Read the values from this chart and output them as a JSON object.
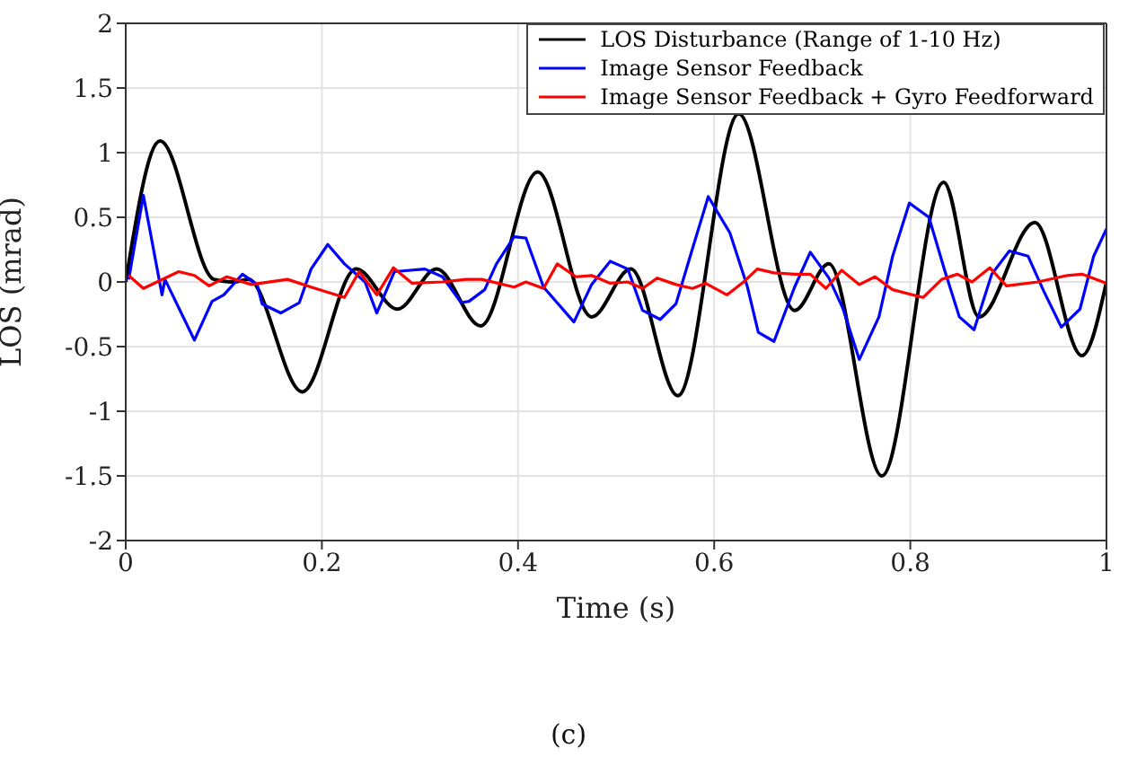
{
  "chart_data": {
    "type": "line",
    "xlabel": "Time (s)",
    "ylabel": "LOS (mrad)",
    "annotations": [
      "(c)"
    ],
    "xlim": [
      0,
      1
    ],
    "xticks": [
      0,
      0.2,
      0.4,
      0.6,
      0.8,
      1
    ],
    "ylim": [
      -2,
      2
    ],
    "yticks": [
      -2,
      -1.5,
      -1,
      -0.5,
      0,
      0.5,
      1,
      1.5,
      2
    ],
    "grid": true,
    "legend": "top right",
    "series": [
      {
        "name": "LOS Disturbance (Range of 1-10 Hz)",
        "color": "#000000",
        "x": [
          0,
          0.035,
          0.09,
          0.11,
          0.125,
          0.18,
          0.235,
          0.277,
          0.317,
          0.362,
          0.42,
          0.475,
          0.515,
          0.563,
          0.625,
          0.682,
          0.717,
          0.771,
          0.834,
          0.87,
          0.927,
          0.975,
          1
        ],
        "values": [
          0,
          1.09,
          0.02,
          0,
          0.02,
          -0.85,
          0.1,
          -0.21,
          0.1,
          -0.34,
          0.85,
          -0.27,
          0.1,
          -0.88,
          1.3,
          -0.22,
          0.14,
          -1.5,
          0.77,
          -0.27,
          0.46,
          -0.57,
          0
        ]
      },
      {
        "name": "Image Sensor Feedback",
        "color": "#0000ff",
        "x": [
          0.003,
          0.018,
          0.037,
          0.04,
          0.07,
          0.088,
          0.1,
          0.119,
          0.134,
          0.139,
          0.158,
          0.177,
          0.189,
          0.206,
          0.223,
          0.244,
          0.256,
          0.274,
          0.305,
          0.323,
          0.342,
          0.35,
          0.366,
          0.378,
          0.396,
          0.408,
          0.426,
          0.457,
          0.475,
          0.494,
          0.512,
          0.527,
          0.545,
          0.561,
          0.578,
          0.594,
          0.616,
          0.634,
          0.645,
          0.661,
          0.682,
          0.698,
          0.717,
          0.731,
          0.748,
          0.768,
          0.782,
          0.799,
          0.819,
          0.835,
          0.85,
          0.865,
          0.883,
          0.901,
          0.92,
          0.936,
          0.954,
          0.973,
          0.987,
          1
        ],
        "values": [
          0.02,
          0.67,
          -0.1,
          0.02,
          -0.45,
          -0.15,
          -0.1,
          0.06,
          -0.02,
          -0.17,
          -0.24,
          -0.16,
          0.1,
          0.29,
          0.14,
          0,
          -0.24,
          0.08,
          0.1,
          0.04,
          -0.16,
          -0.15,
          -0.06,
          0.14,
          0.35,
          0.34,
          -0.04,
          -0.31,
          -0.02,
          0.16,
          0.1,
          -0.22,
          -0.29,
          -0.17,
          0.26,
          0.66,
          0.38,
          -0.04,
          -0.39,
          -0.46,
          -0.04,
          0.23,
          0.03,
          -0.2,
          -0.6,
          -0.27,
          0.2,
          0.61,
          0.5,
          0.09,
          -0.27,
          -0.37,
          0.06,
          0.24,
          0.2,
          -0.07,
          -0.35,
          -0.21,
          0.2,
          0.41
        ]
      },
      {
        "name": "Image Sensor Feedback + Gyro Feedforward",
        "color": "#ff0000",
        "x": [
          0.003,
          0.018,
          0.054,
          0.07,
          0.085,
          0.103,
          0.128,
          0.165,
          0.189,
          0.223,
          0.238,
          0.256,
          0.273,
          0.292,
          0.323,
          0.347,
          0.363,
          0.396,
          0.408,
          0.426,
          0.44,
          0.459,
          0.475,
          0.494,
          0.512,
          0.527,
          0.542,
          0.561,
          0.578,
          0.591,
          0.613,
          0.63,
          0.644,
          0.661,
          0.682,
          0.698,
          0.714,
          0.73,
          0.748,
          0.764,
          0.782,
          0.813,
          0.832,
          0.848,
          0.863,
          0.881,
          0.898,
          0.93,
          0.96,
          0.975,
          1
        ],
        "values": [
          0.05,
          -0.05,
          0.08,
          0.05,
          -0.03,
          0.04,
          -0.02,
          0.02,
          -0.04,
          -0.12,
          0.08,
          -0.1,
          0.11,
          -0.01,
          0,
          0.02,
          0.02,
          -0.04,
          0,
          -0.05,
          0.14,
          0.04,
          0.05,
          -0.01,
          0,
          -0.05,
          0.03,
          -0.02,
          -0.05,
          -0.01,
          -0.1,
          0,
          0.1,
          0.07,
          0.06,
          0.06,
          -0.05,
          0.09,
          -0.02,
          0.04,
          -0.06,
          -0.12,
          0.02,
          0.06,
          0,
          0.11,
          -0.03,
          0,
          0.05,
          0.06,
          -0.01
        ]
      }
    ]
  }
}
